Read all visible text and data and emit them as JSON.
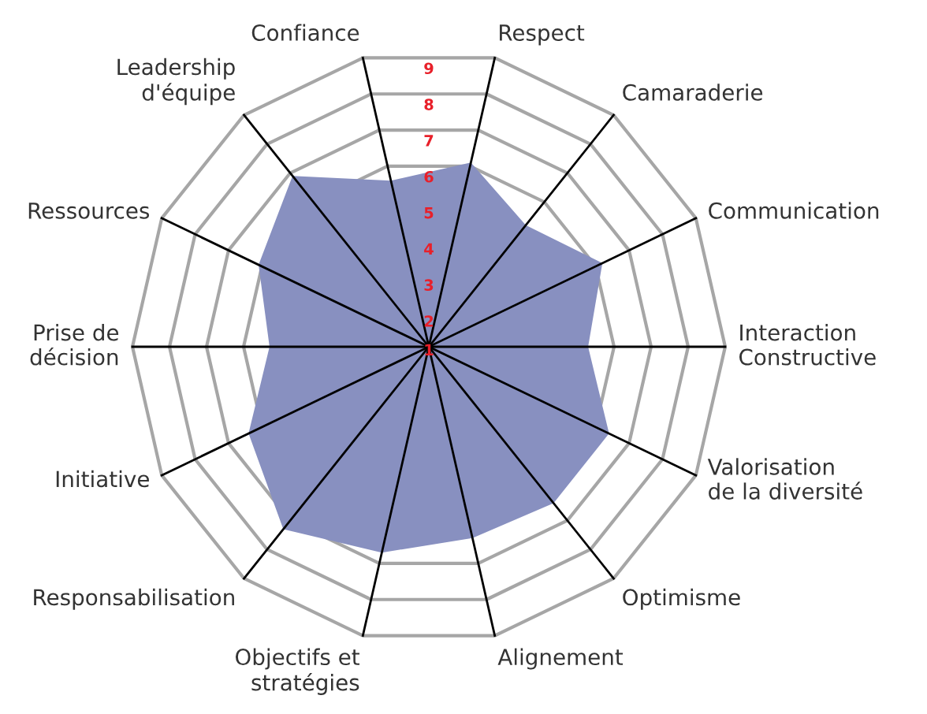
{
  "chart_data": {
    "type": "radar",
    "categories": [
      "Confiance",
      "Respect",
      "Camaraderie",
      "Communication",
      "Interaction\nConstructive",
      "Valorisation\nde la diversité",
      "Optimisme",
      "Alignement",
      "Objectifs et\nstratégies",
      "Responsabilisation",
      "Initiative",
      "Prise de\ndécision",
      "Ressources",
      "Leadership\nd'équipe"
    ],
    "series": [
      {
        "color": "#8890c0",
        "values": [
          5.6,
          6.1,
          5.2,
          6.2,
          5.3,
          6.4,
          6.4,
          6.3,
          6.7,
          7.3,
          6.4,
          5.3,
          6.1,
          6.9
        ]
      }
    ],
    "ylim": [
      1,
      9
    ],
    "yticks": [
      1,
      2,
      3,
      4,
      5,
      6,
      7,
      8,
      9
    ],
    "grid": true
  }
}
